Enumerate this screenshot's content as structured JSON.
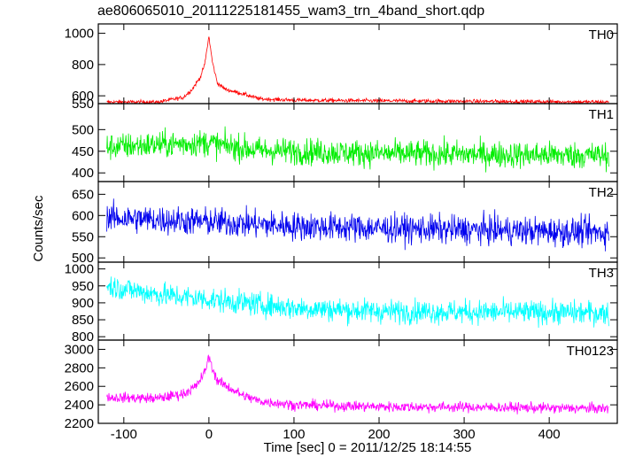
{
  "chart_data": {
    "type": "line",
    "title": "ae806065010_20111225181455_wam3_trn_4band_short.qdp",
    "xlabel": "Time [sec] 0 = 2011/12/25 18:14:55",
    "ylabel": "Counts/sec",
    "xlim": [
      -130,
      480
    ],
    "xticks": [
      -100,
      0,
      100,
      200,
      300,
      400
    ],
    "panels": [
      {
        "name": "TH0",
        "color": "#ff0000",
        "ylim": [
          550,
          1060
        ],
        "yticks": [
          600,
          800,
          1000
        ],
        "ytick_labels": [
          "600",
          "800",
          "1000"
        ],
        "extra_tick_labels": [
          {
            "value": 550,
            "label": "550"
          }
        ],
        "profile": [
          [
            -120,
            560
          ],
          [
            -60,
            560
          ],
          [
            -30,
            590
          ],
          [
            -20,
            640
          ],
          [
            -10,
            720
          ],
          [
            -5,
            800
          ],
          [
            0,
            980
          ],
          [
            4,
            820
          ],
          [
            10,
            680
          ],
          [
            20,
            640
          ],
          [
            35,
            620
          ],
          [
            60,
            580
          ],
          [
            100,
            572
          ],
          [
            200,
            568
          ],
          [
            300,
            565
          ],
          [
            470,
            560
          ]
        ],
        "noise": 9
      },
      {
        "name": "TH1",
        "color": "#00ee00",
        "ylim": [
          380,
          560
        ],
        "yticks": [
          400,
          450,
          500
        ],
        "ytick_labels": [
          "400",
          "450",
          "500"
        ],
        "profile": [
          [
            -120,
            460
          ],
          [
            0,
            470
          ],
          [
            10,
            465
          ],
          [
            60,
            452
          ],
          [
            200,
            445
          ],
          [
            470,
            440
          ]
        ],
        "noise": 22
      },
      {
        "name": "TH2",
        "color": "#0000ee",
        "ylim": [
          490,
          680
        ],
        "yticks": [
          500,
          550,
          600,
          650
        ],
        "ytick_labels": [
          "500",
          "550",
          "600",
          "650"
        ],
        "profile": [
          [
            -120,
            595
          ],
          [
            0,
            585
          ],
          [
            100,
            575
          ],
          [
            200,
            570
          ],
          [
            470,
            560
          ]
        ],
        "noise": 24
      },
      {
        "name": "TH3",
        "color": "#00ffff",
        "ylim": [
          790,
          1020
        ],
        "yticks": [
          800,
          850,
          900,
          950,
          1000
        ],
        "ytick_labels": [
          "800",
          "850",
          "900",
          "950",
          "1000"
        ],
        "profile": [
          [
            -120,
            950
          ],
          [
            -60,
            925
          ],
          [
            0,
            910
          ],
          [
            100,
            885
          ],
          [
            200,
            875
          ],
          [
            470,
            870
          ]
        ],
        "noise": 25
      },
      {
        "name": "TH0123",
        "color": "#ff00ff",
        "ylim": [
          2200,
          3100
        ],
        "yticks": [
          2200,
          2400,
          2600,
          2800,
          3000
        ],
        "ytick_labels": [
          "2200",
          "2400",
          "2600",
          "2800",
          "3000"
        ],
        "profile": [
          [
            -120,
            2480
          ],
          [
            -60,
            2470
          ],
          [
            -30,
            2520
          ],
          [
            -15,
            2600
          ],
          [
            -5,
            2750
          ],
          [
            0,
            2920
          ],
          [
            4,
            2800
          ],
          [
            10,
            2660
          ],
          [
            25,
            2580
          ],
          [
            40,
            2500
          ],
          [
            60,
            2440
          ],
          [
            100,
            2400
          ],
          [
            200,
            2380
          ],
          [
            300,
            2375
          ],
          [
            470,
            2360
          ]
        ],
        "noise": 40
      }
    ]
  }
}
